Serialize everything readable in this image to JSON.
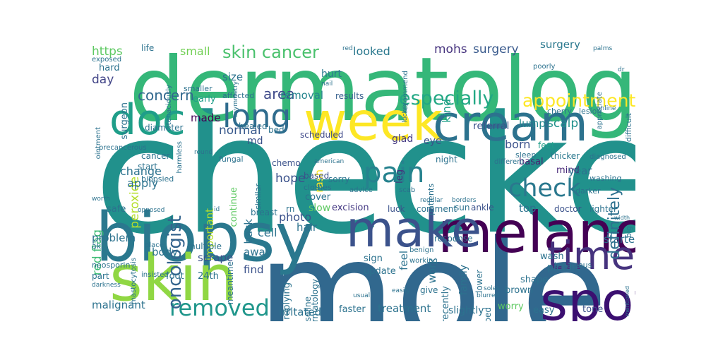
{
  "words": [
    {
      "text": "checked",
      "size": 2.3,
      "color": "#21918c",
      "rot": 0
    },
    {
      "text": "mole",
      "size": 2.0,
      "color": "#31688e",
      "rot": 0
    },
    {
      "text": "dermatologist",
      "size": 1.25,
      "color": "#35b779",
      "rot": 0
    },
    {
      "text": "biopsy",
      "size": 0.95,
      "color": "#2a788e",
      "rot": 0
    },
    {
      "text": "skin",
      "size": 0.9,
      "color": "#90d743",
      "rot": 0
    },
    {
      "text": "melanoma",
      "size": 0.8,
      "color": "#440154",
      "rot": 0
    },
    {
      "text": "spot",
      "size": 0.75,
      "color": "#3b0f70",
      "rot": 0
    },
    {
      "text": "week",
      "size": 0.75,
      "color": "#fde725",
      "rot": 0
    },
    {
      "text": "cream",
      "size": 0.7,
      "color": "#2c728e",
      "rot": 0
    },
    {
      "text": "make",
      "size": 0.7,
      "color": "#3b528b",
      "rot": 0
    },
    {
      "text": "doc",
      "size": 0.6,
      "color": "#1f9e89",
      "rot": 0
    },
    {
      "text": "time",
      "size": 0.55,
      "color": "#46337e",
      "rot": 0
    },
    {
      "text": "long",
      "size": 0.45,
      "color": "#2f6c8e",
      "rot": 0
    },
    {
      "text": "pain",
      "size": 0.4,
      "color": "#26828e",
      "rot": 0
    },
    {
      "text": "check",
      "size": 0.35,
      "color": "#2a788e",
      "rot": 0
    },
    {
      "text": "removed",
      "size": 0.32,
      "color": "#1f968b",
      "rot": 0
    },
    {
      "text": "especially",
      "size": 0.27,
      "color": "#22a884",
      "rot": 0
    },
    {
      "text": "appointment",
      "size": 0.25,
      "color": "#fde725",
      "rot": 0
    },
    {
      "text": "skin cancer",
      "size": 0.24,
      "color": "#4ac16d",
      "rot": 0
    },
    {
      "text": "oncologist",
      "size": 0.26,
      "color": "#33638d",
      "rot": -90
    },
    {
      "text": "definitely",
      "size": 0.22,
      "color": "#2d708e",
      "rot": -90
    },
    {
      "text": "concern",
      "size": 0.2,
      "color": "#31688e",
      "rot": 0
    },
    {
      "text": "mohs",
      "size": 0.17,
      "color": "#46337e",
      "rot": 0
    },
    {
      "text": "surgery",
      "size": 0.17,
      "color": "#38598c",
      "rot": 0
    },
    {
      "text": "https",
      "size": 0.17,
      "color": "#5ec962",
      "rot": 0
    },
    {
      "text": "small",
      "size": 0.16,
      "color": "#73d056",
      "rot": 0
    },
    {
      "text": "looked",
      "size": 0.16,
      "color": "#2a788e",
      "rot": 0
    },
    {
      "text": "kind",
      "size": 0.16,
      "color": "#1fa088",
      "rot": -90
    },
    {
      "text": "area",
      "size": 0.2,
      "color": "#3e4989",
      "rot": 0
    },
    {
      "text": "day",
      "size": 0.17,
      "color": "#414487",
      "rot": 0
    },
    {
      "text": "surgery",
      "size": 0.15,
      "color": "#2a788e",
      "rot": 0
    },
    {
      "text": "size",
      "size": 0.15,
      "color": "#2c728e",
      "rot": 0
    },
    {
      "text": "removal",
      "size": 0.15,
      "color": "#25858e",
      "rot": 0
    },
    {
      "text": "results",
      "size": 0.12,
      "color": "#355f8d",
      "rot": 0
    },
    {
      "text": "scalp",
      "size": 0.17,
      "color": "#21918c",
      "rot": 0
    },
    {
      "text": "lump",
      "size": 0.15,
      "color": "#23888e",
      "rot": 0
    },
    {
      "text": "referral",
      "size": 0.14,
      "color": "#3b528b",
      "rot": 0
    },
    {
      "text": "peroxide",
      "size": 0.17,
      "color": "#b5de2b",
      "rot": -90
    },
    {
      "text": "red flag",
      "size": 0.17,
      "color": "#3dbc74",
      "rot": -90
    },
    {
      "text": "hurt",
      "size": 0.14,
      "color": "#2a788e",
      "rot": 0
    },
    {
      "text": "made",
      "size": 0.15,
      "color": "#440154",
      "rot": 0
    },
    {
      "text": "normal",
      "size": 0.17,
      "color": "#38598c",
      "rot": 0
    },
    {
      "text": "md",
      "size": 0.14,
      "color": "#3b528b",
      "rot": 0
    },
    {
      "text": "early",
      "size": 0.13,
      "color": "#1f9e89",
      "rot": 0
    },
    {
      "text": "healed",
      "size": 0.12,
      "color": "#2c728e",
      "rot": 0
    },
    {
      "text": "bed",
      "size": 0.12,
      "color": "#2c728e",
      "rot": 0
    },
    {
      "text": "scheduled",
      "size": 0.12,
      "color": "#3e4989",
      "rot": 0
    },
    {
      "text": "glad",
      "size": 0.14,
      "color": "#443983",
      "rot": 0
    },
    {
      "text": "eye",
      "size": 0.14,
      "color": "#3b528b",
      "rot": 0
    },
    {
      "text": "leg",
      "size": 0.13,
      "color": "#472d7b",
      "rot": -90
    },
    {
      "text": "rash",
      "size": 0.15,
      "color": "#fde725",
      "rot": -90
    },
    {
      "text": "born",
      "size": 0.16,
      "color": "#3b528b",
      "rot": 0
    },
    {
      "text": "feet",
      "size": 0.12,
      "color": "#1f9e89",
      "rot": 0
    },
    {
      "text": "thicker",
      "size": 0.12,
      "color": "#2a788e",
      "rot": 0
    },
    {
      "text": "change",
      "size": 0.16,
      "color": "#2c728e",
      "rot": 0
    },
    {
      "text": "apply",
      "size": 0.16,
      "color": "#2c728e",
      "rot": 0
    },
    {
      "text": "hope",
      "size": 0.17,
      "color": "#3b528b",
      "rot": 0
    },
    {
      "text": "continue",
      "size": 0.13,
      "color": "#5ec962",
      "rot": -90
    },
    {
      "text": "important",
      "size": 0.15,
      "color": "#b5de2b",
      "rot": -90
    },
    {
      "text": "back",
      "size": 0.15,
      "color": "#2c728e",
      "rot": -90
    },
    {
      "text": "chemo",
      "size": 0.12,
      "color": "#3b528b",
      "rot": 0
    },
    {
      "text": "mind",
      "size": 0.13,
      "color": "#482878",
      "rot": 0
    },
    {
      "text": "year",
      "size": 0.15,
      "color": "#2c728e",
      "rot": 0
    },
    {
      "text": "basal",
      "size": 0.13,
      "color": "#481f70",
      "rot": 0
    },
    {
      "text": "night",
      "size": 0.12,
      "color": "#2c728e",
      "rot": 0
    },
    {
      "text": "based",
      "size": 0.12,
      "color": "#3b528b",
      "rot": 0
    },
    {
      "text": "sorry",
      "size": 0.12,
      "color": "#2c728e",
      "rot": 0
    },
    {
      "text": "cover",
      "size": 0.13,
      "color": "#2c728e",
      "rot": 0
    },
    {
      "text": "slow",
      "size": 0.14,
      "color": "#5ec962",
      "rot": 0
    },
    {
      "text": "excision",
      "size": 0.13,
      "color": "#443983",
      "rot": 0
    },
    {
      "text": "luck",
      "size": 0.12,
      "color": "#3b528b",
      "rot": 0
    },
    {
      "text": "comment",
      "size": 0.12,
      "color": "#2c728e",
      "rot": 0
    },
    {
      "text": "sun",
      "size": 0.12,
      "color": "#2c728e",
      "rot": 0
    },
    {
      "text": "ankle",
      "size": 0.12,
      "color": "#3b528b",
      "rot": 0
    },
    {
      "text": "top",
      "size": 0.15,
      "color": "#2c728e",
      "rot": 0
    },
    {
      "text": "doctor",
      "size": 0.12,
      "color": "#3b528b",
      "rot": 0
    },
    {
      "text": "lighter",
      "size": 0.12,
      "color": "#2c728e",
      "rot": 0
    },
    {
      "text": "safe",
      "size": 0.13,
      "color": "#2c728e",
      "rot": 0
    },
    {
      "text": "breast",
      "size": 0.12,
      "color": "#2c728e",
      "rot": 0
    },
    {
      "text": "hair",
      "size": 0.15,
      "color": "#2c728e",
      "rot": 0
    },
    {
      "text": "photo",
      "size": 0.16,
      "color": "#3b528b",
      "rot": 0
    },
    {
      "text": "rn",
      "size": 0.12,
      "color": "#2c728e",
      "rot": 0
    },
    {
      "text": "cell",
      "size": 0.16,
      "color": "#2c728e",
      "rot": 0
    },
    {
      "text": "problem",
      "size": 0.15,
      "color": "#2c728e",
      "rot": 0
    },
    {
      "text": "body",
      "size": 0.15,
      "color": "#2c728e",
      "rot": 0
    },
    {
      "text": "multiple",
      "size": 0.12,
      "color": "#2c728e",
      "rot": 0
    },
    {
      "text": "scrape",
      "size": 0.15,
      "color": "#3b528b",
      "rot": 0
    },
    {
      "text": "away",
      "size": 0.15,
      "color": "#2c728e",
      "rot": 0
    },
    {
      "text": "started",
      "size": 0.15,
      "color": "#2c728e",
      "rot": 0
    },
    {
      "text": "response",
      "size": 0.12,
      "color": "#2c728e",
      "rot": 0
    },
    {
      "text": "feel",
      "size": 0.15,
      "color": "#2c728e",
      "rot": -90
    },
    {
      "text": "work",
      "size": 0.15,
      "color": "#2c728e",
      "rot": -90
    },
    {
      "text": "find",
      "size": 0.15,
      "color": "#3b528b",
      "rot": 0
    },
    {
      "text": "sign",
      "size": 0.13,
      "color": "#2c728e",
      "rot": 0
    },
    {
      "text": "update",
      "size": 0.13,
      "color": "#2c728e",
      "rot": 0
    },
    {
      "text": "picture",
      "size": 0.14,
      "color": "#2c728e",
      "rot": 0
    },
    {
      "text": "wash",
      "size": 0.13,
      "color": "#2c728e",
      "rot": 0
    },
    {
      "text": "shape",
      "size": 0.13,
      "color": "#2c728e",
      "rot": 0
    },
    {
      "text": "brown",
      "size": 0.13,
      "color": "#2c728e",
      "rot": 0
    },
    {
      "text": "malignant",
      "size": 0.15,
      "color": "#2c728e",
      "rot": 0
    },
    {
      "text": "treatment",
      "size": 0.15,
      "color": "#2c728e",
      "rot": 0
    },
    {
      "text": "irritated",
      "size": 0.15,
      "color": "#2c728e",
      "rot": 0
    },
    {
      "text": "faster",
      "size": 0.13,
      "color": "#2c728e",
      "rot": 0
    },
    {
      "text": "slightly",
      "size": 0.14,
      "color": "#2c728e",
      "rot": 0
    },
    {
      "text": "worry",
      "size": 0.13,
      "color": "#5ec962",
      "rot": 0
    },
    {
      "text": "easy",
      "size": 0.13,
      "color": "#2c728e",
      "rot": 0
    },
    {
      "text": "tone",
      "size": 0.13,
      "color": "#3b528b",
      "rot": 0
    },
    {
      "text": "24th",
      "size": 0.13,
      "color": "#2c728e",
      "rot": 0
    },
    {
      "text": "part",
      "size": 0.12,
      "color": "#2c728e",
      "rot": 0
    },
    {
      "text": "foot",
      "size": 0.13,
      "color": "#2c728e",
      "rot": 0
    },
    {
      "text": "replying",
      "size": 0.13,
      "color": "#2c728e",
      "rot": -90
    },
    {
      "text": "vaseline",
      "size": 0.12,
      "color": "#2c728e",
      "rot": -90
    },
    {
      "text": "dermatology",
      "size": 0.12,
      "color": "#2c728e",
      "rot": -90
    },
    {
      "text": "family",
      "size": 0.14,
      "color": "#2c728e",
      "rot": -90
    },
    {
      "text": "recently",
      "size": 0.13,
      "color": "#2c728e",
      "rot": -90
    },
    {
      "text": "prescribed",
      "size": 0.12,
      "color": "#2c728e",
      "rot": -90
    },
    {
      "text": "lower",
      "size": 0.12,
      "color": "#2c728e",
      "rot": -90
    },
    {
      "text": "give",
      "size": 0.12,
      "color": "#2c728e",
      "rot": 0
    },
    {
      "text": "life",
      "size": 0.12,
      "color": "#2c728e",
      "rot": 0
    },
    {
      "text": "hard",
      "size": 0.13,
      "color": "#2c728e",
      "rot": 0
    },
    {
      "text": "surgeon",
      "size": 0.13,
      "color": "#2c728e",
      "rot": -90
    },
    {
      "text": "diameter",
      "size": 0.12,
      "color": "#2c728e",
      "rot": 0
    },
    {
      "text": "cancer",
      "size": 0.12,
      "color": "#2c728e",
      "rot": 0
    },
    {
      "text": "start",
      "size": 0.12,
      "color": "#2c728e",
      "rot": 0
    },
    {
      "text": "biopsied",
      "size": 0.11,
      "color": "#2c728e",
      "rot": 0
    },
    {
      "text": "meantime",
      "size": 0.12,
      "color": "#2c728e",
      "rot": -90
    },
    {
      "text": "similar",
      "size": 0.11,
      "color": "#2c728e",
      "rot": -90
    },
    {
      "text": "clothes",
      "size": 0.11,
      "color": "#2c728e",
      "rot": 0
    },
    {
      "text": "neosporin",
      "size": 0.11,
      "color": "#2c728e",
      "rot": 0
    },
    {
      "text": "tenacious",
      "size": 0.11,
      "color": "#2c728e",
      "rot": 0
    },
    {
      "text": "ointment",
      "size": 0.1,
      "color": "#2c728e",
      "rot": -90
    },
    {
      "text": "fungal",
      "size": 0.11,
      "color": "#2c728e",
      "rot": 0
    },
    {
      "text": "affected",
      "size": 0.11,
      "color": "#2c728e",
      "rot": 0
    },
    {
      "text": "cherry",
      "size": 0.11,
      "color": "#2c728e",
      "rot": 0
    },
    {
      "text": "lesion",
      "size": 0.11,
      "color": "#2c728e",
      "rot": 0
    },
    {
      "text": "difficult",
      "size": 0.11,
      "color": "#2c728e",
      "rot": -90
    },
    {
      "text": "appreciate",
      "size": 0.1,
      "color": "#2c728e",
      "rot": -90
    },
    {
      "text": "sleep",
      "size": 0.11,
      "color": "#2c728e",
      "rot": 0
    },
    {
      "text": "diagnosed",
      "size": 0.1,
      "color": "#2c728e",
      "rot": 0
    },
    {
      "text": "washing",
      "size": 0.11,
      "color": "#2c728e",
      "rot": 0
    },
    {
      "text": "darker",
      "size": 0.11,
      "color": "#2c728e",
      "rot": 0
    },
    {
      "text": "different",
      "size": 0.1,
      "color": "#2c728e",
      "rot": 0
    },
    {
      "text": "patients",
      "size": 0.11,
      "color": "#2c728e",
      "rot": -90
    },
    {
      "text": "advice",
      "size": 0.1,
      "color": "#2c728e",
      "rot": 0
    },
    {
      "text": "scab",
      "size": 0.1,
      "color": "#2c728e",
      "rot": 0
    },
    {
      "text": "benign",
      "size": 0.1,
      "color": "#2c728e",
      "rot": 0
    },
    {
      "text": "working",
      "size": 0.1,
      "color": "#2c728e",
      "rot": 0
    },
    {
      "text": "smaller",
      "size": 0.11,
      "color": "#2c728e",
      "rot": 0
    },
    {
      "text": "precancerous",
      "size": 0.1,
      "color": "#2c728e",
      "rot": 0
    },
    {
      "text": "exposed",
      "size": 0.1,
      "color": "#2c728e",
      "rot": 0
    },
    {
      "text": "poorly",
      "size": 0.1,
      "color": "#2c728e",
      "rot": 0
    },
    {
      "text": "recommend",
      "size": 0.1,
      "color": "#2c728e",
      "rot": -90
    },
    {
      "text": "insisted",
      "size": 0.1,
      "color": "#2c728e",
      "rot": 0
    },
    {
      "text": "online",
      "size": 0.09,
      "color": "#2c728e",
      "rot": 0
    },
    {
      "text": "american",
      "size": 0.09,
      "color": "#2c728e",
      "rot": 0
    },
    {
      "text": "red",
      "size": 0.09,
      "color": "#2c728e",
      "rot": 0
    },
    {
      "text": "nail",
      "size": 0.09,
      "color": "#2c728e",
      "rot": 0
    },
    {
      "text": "palms",
      "size": 0.09,
      "color": "#2c728e",
      "rot": 0
    },
    {
      "text": "dr",
      "size": 0.09,
      "color": "#2c728e",
      "rot": 0
    },
    {
      "text": "darkness",
      "size": 0.09,
      "color": "#2c728e",
      "rot": 0
    },
    {
      "text": "usual",
      "size": 0.09,
      "color": "#2c728e",
      "rot": 0
    },
    {
      "text": "regular",
      "size": 0.09,
      "color": "#2c728e",
      "rot": 0
    },
    {
      "text": "borders",
      "size": 0.09,
      "color": "#2c728e",
      "rot": 0
    },
    {
      "text": "soles",
      "size": 0.09,
      "color": "#2c728e",
      "rot": 0
    },
    {
      "text": "easily",
      "size": 0.09,
      "color": "#2c728e",
      "rot": 0
    },
    {
      "text": "blurred",
      "size": 0.09,
      "color": "#2c728e",
      "rot": 0
    },
    {
      "text": "id",
      "size": 0.09,
      "color": "#2c728e",
      "rot": 0
    },
    {
      "text": "opposed",
      "size": 0.09,
      "color": "#2c728e",
      "rot": 0
    },
    {
      "text": "worth",
      "size": 0.09,
      "color": "#2c728e",
      "rot": 0
    },
    {
      "text": "round",
      "size": 0.09,
      "color": "#2c728e",
      "rot": 0
    },
    {
      "text": "mastocytosis",
      "size": 0.1,
      "color": "#2c728e",
      "rot": -90
    },
    {
      "text": "harmless",
      "size": 0.1,
      "color": "#2c728e",
      "rot": -90
    },
    {
      "text": "asymmetry",
      "size": 0.09,
      "color": "#2c728e",
      "rot": -90
    },
    {
      "text": "tenaciously",
      "size": 0.1,
      "color": "#2c728e",
      "rot": -90
    },
    {
      "text": "luckily",
      "size": 0.09,
      "color": "#2c728e",
      "rot": -90
    },
    {
      "text": "place",
      "size": 0.1,
      "color": "#2c728e",
      "rot": 0
    },
    {
      "text": "ak",
      "size": 0.11,
      "color": "#2c728e",
      "rot": 0
    },
    {
      "text": "big",
      "size": 0.11,
      "color": "#2c728e",
      "rot": -90
    },
    {
      "text": "mentioned",
      "size": 0.08,
      "color": "#2c728e",
      "rot": -90
    },
    {
      "text": "width",
      "size": 0.08,
      "color": "#2c728e",
      "rot": 0
    }
  ]
}
